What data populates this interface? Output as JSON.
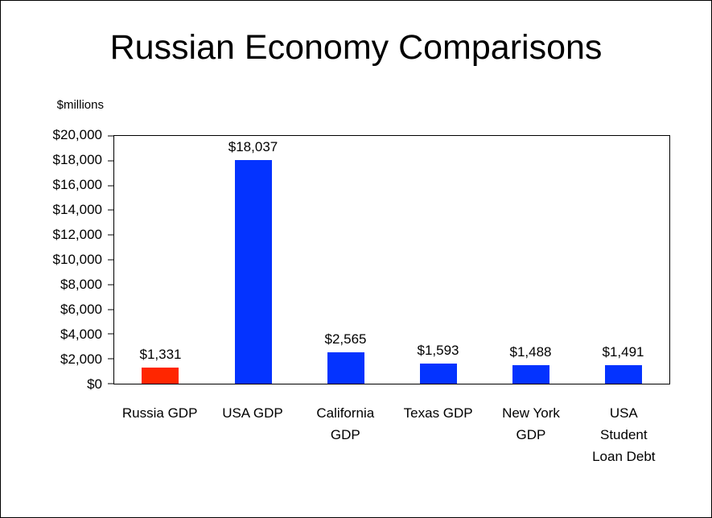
{
  "title": "Russian Economy Comparisons",
  "chart_data": {
    "type": "bar",
    "title": "Russian Economy Comparisons",
    "unit_label": "$millions",
    "categories": [
      "Russia GDP",
      "USA GDP",
      "California\nGDP",
      "Texas GDP",
      "New York\nGDP",
      "USA\nStudent\nLoan Debt"
    ],
    "values": [
      1331,
      18037,
      2565,
      1593,
      1488,
      1491
    ],
    "value_labels": [
      "$1,331",
      "$18,037",
      "$2,565",
      "$1,593",
      "$1,488",
      "$1,491"
    ],
    "bar_colors": [
      "#ff2600",
      "#0433ff",
      "#0433ff",
      "#0433ff",
      "#0433ff",
      "#0433ff"
    ],
    "ylim": [
      0,
      20000
    ],
    "ytick_step": 2000,
    "ytick_labels": [
      "$0",
      "$2,000",
      "$4,000",
      "$6,000",
      "$8,000",
      "$10,000",
      "$12,000",
      "$14,000",
      "$16,000",
      "$18,000",
      "$20,000"
    ],
    "grid": false,
    "legend": "none"
  }
}
